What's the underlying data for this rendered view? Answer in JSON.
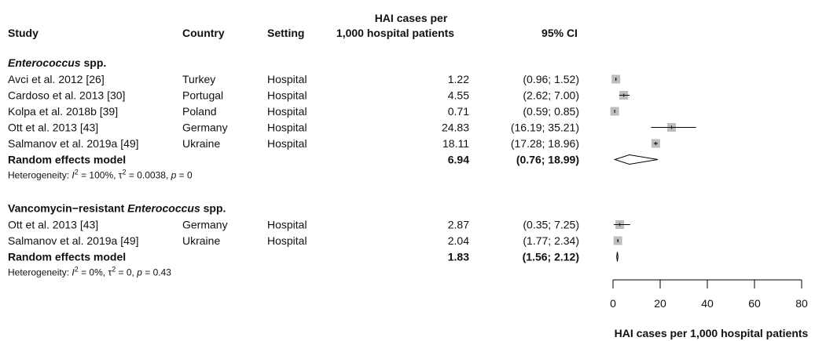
{
  "chart_data": {
    "type": "forest",
    "headers": {
      "study": "Study",
      "country": "Country",
      "setting": "Setting",
      "estimate": [
        "HAI cases per",
        "1,000 hospital patients"
      ],
      "ci": "95% CI"
    },
    "groups": [
      {
        "title": [
          "Enterococcus",
          " spp."
        ],
        "title_style": [
          "italic",
          "normal"
        ],
        "studies": [
          {
            "study": "Avci et al. 2012 [26]",
            "country": "Turkey",
            "setting": "Hospital",
            "estimate": 1.22,
            "ci": [
              0.96,
              1.52
            ],
            "ci_label": "(0.96; 1.52)"
          },
          {
            "study": "Cardoso et al. 2013 [30]",
            "country": "Portugal",
            "setting": "Hospital",
            "estimate": 4.55,
            "ci": [
              2.62,
              7
            ],
            "ci_label": "(2.62; 7.00)"
          },
          {
            "study": "Kolpa et al. 2018b [39]",
            "country": "Poland",
            "setting": "Hospital",
            "estimate": 0.71,
            "ci": [
              0.59,
              0.85
            ],
            "ci_label": "(0.59; 0.85)"
          },
          {
            "study": "Ott et al. 2013 [43]",
            "country": "Germany",
            "setting": "Hospital",
            "estimate": 24.83,
            "ci": [
              16.19,
              35.21
            ],
            "ci_label": "(16.19; 35.21)"
          },
          {
            "study": "Salmanov et al. 2019a [49]",
            "country": "Ukraine",
            "setting": "Hospital",
            "estimate": 18.11,
            "ci": [
              17.28,
              18.96
            ],
            "ci_label": "(17.28; 18.96)"
          }
        ],
        "pooled": {
          "name": "Random effects model",
          "estimate": 6.94,
          "ci": [
            0.76,
            18.99
          ],
          "ci_label": "(0.76; 18.99)"
        },
        "heterogeneity": [
          "Heterogeneity: ",
          "I",
          "2",
          " = 100%, ",
          "τ",
          "2",
          " = 0.0038, ",
          "p",
          " = 0"
        ],
        "heterogeneity_style": [
          "normal",
          "italic",
          "sup",
          "normal",
          "normal",
          "sup",
          "normal",
          "italic",
          "normal"
        ]
      },
      {
        "title": [
          "Vancomycin−resistant ",
          "Enterococcus",
          " spp."
        ],
        "title_style": [
          "normal",
          "italic",
          "normal"
        ],
        "studies": [
          {
            "study": "Ott et al. 2013 [43]",
            "country": "Germany",
            "setting": "Hospital",
            "estimate": 2.87,
            "ci": [
              0.35,
              7.25
            ],
            "ci_label": "(0.35; 7.25)"
          },
          {
            "study": "Salmanov et al. 2019a [49]",
            "country": "Ukraine",
            "setting": "Hospital",
            "estimate": 2.04,
            "ci": [
              1.77,
              2.34
            ],
            "ci_label": "(1.77; 2.34)"
          }
        ],
        "pooled": {
          "name": "Random effects model",
          "estimate": 1.83,
          "ci": [
            1.56,
            2.12
          ],
          "ci_label": "(1.56; 2.12)"
        },
        "heterogeneity": [
          "Heterogeneity: ",
          "I",
          "2",
          " = 0%, ",
          "τ",
          "2",
          " = 0, ",
          "p",
          " = 0.43"
        ],
        "heterogeneity_style": [
          "normal",
          "italic",
          "sup",
          "normal",
          "normal",
          "sup",
          "normal",
          "italic",
          "normal"
        ]
      }
    ],
    "xlim": [
      0,
      80
    ],
    "xticks": [
      0,
      20,
      40,
      60,
      80
    ],
    "xlabel": "HAI cases per 1,000 hospital patients",
    "box_color": "#bdbdbd"
  }
}
